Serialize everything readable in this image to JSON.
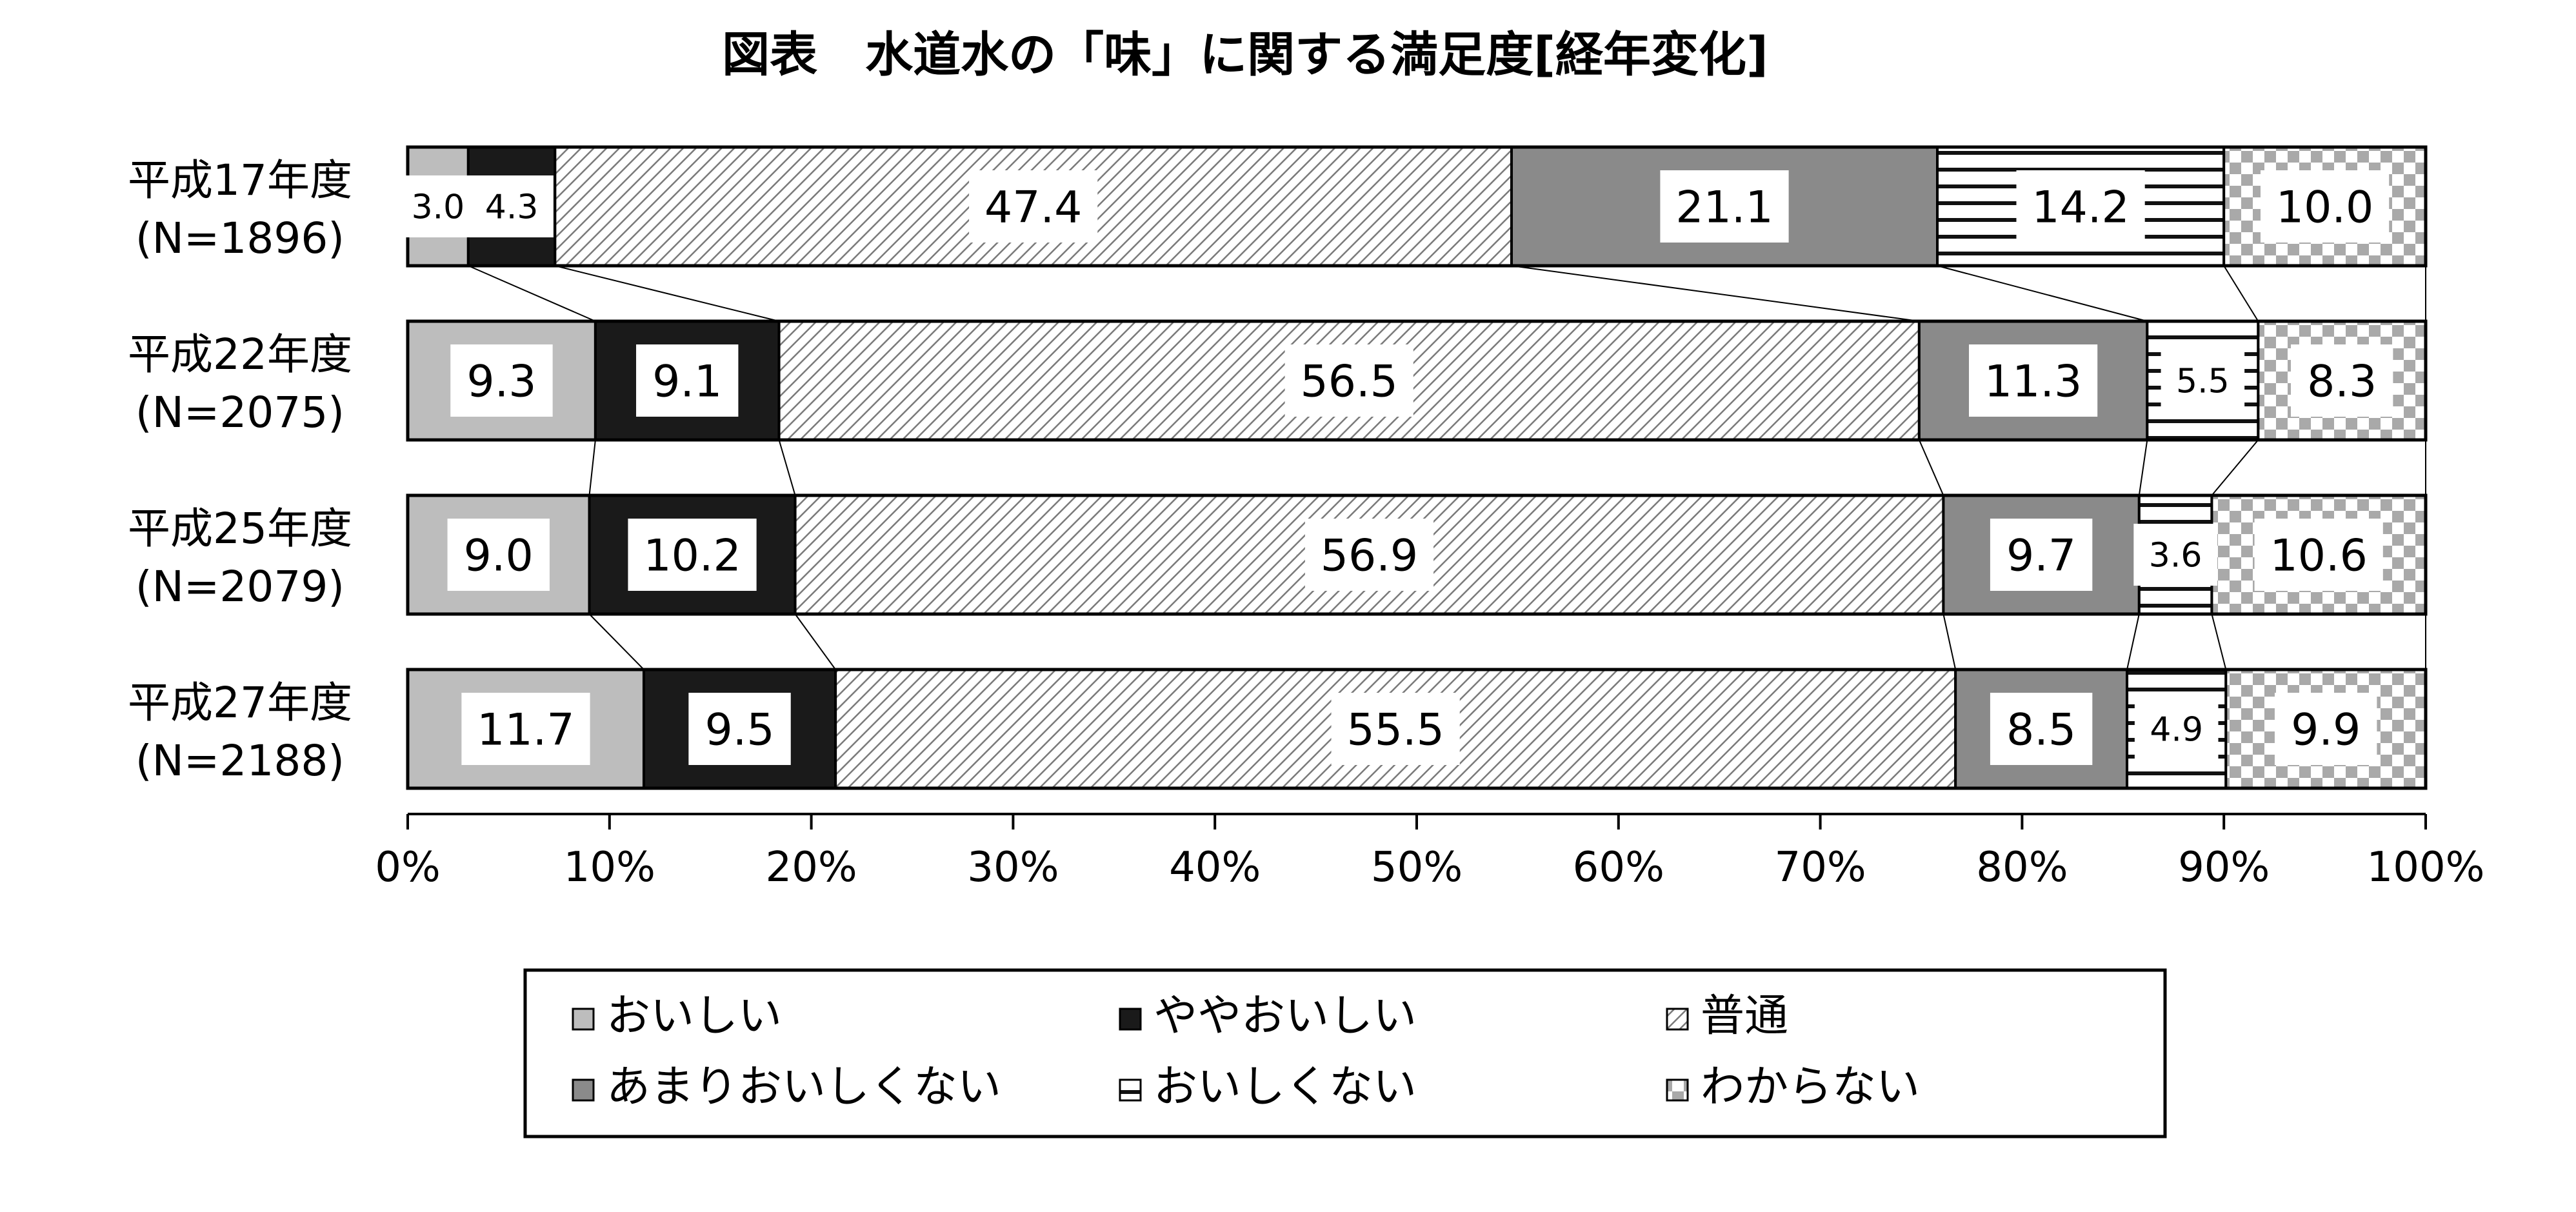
{
  "chart_data": {
    "type": "bar",
    "orientation": "horizontal",
    "stacked": "percent",
    "title": "図表　水道水の「味」に関する満足度[経年変化]",
    "categories": [
      {
        "line1": "平成17年度",
        "line2": "(N=1896)"
      },
      {
        "line1": "平成22年度",
        "line2": "(N=2075)"
      },
      {
        "line1": "平成25年度",
        "line2": "(N=2079)"
      },
      {
        "line1": "平成27年度",
        "line2": "(N=2188)"
      }
    ],
    "series": [
      {
        "name": "おいしい",
        "values": [
          3.0,
          9.3,
          9.0,
          11.7
        ],
        "labels": [
          "3.0",
          "9.3",
          "9.0",
          "11.7"
        ]
      },
      {
        "name": "ややおいしい",
        "values": [
          4.3,
          9.1,
          10.2,
          9.5
        ],
        "labels": [
          "4.3",
          "9.1",
          "10.2",
          "9.5"
        ]
      },
      {
        "name": "普通",
        "values": [
          47.4,
          56.5,
          56.9,
          55.5
        ],
        "labels": [
          "47.4",
          "56.5",
          "56.9",
          "55.5"
        ]
      },
      {
        "name": "あまりおいしくない",
        "values": [
          21.1,
          11.3,
          9.7,
          8.5
        ],
        "labels": [
          "21.1",
          "11.3",
          "9.7",
          "8.5"
        ]
      },
      {
        "name": "おいしくない",
        "values": [
          14.2,
          5.5,
          3.6,
          4.9
        ],
        "labels": [
          "14.2",
          "5.5",
          "3.6",
          "4.9"
        ]
      },
      {
        "name": "わからない",
        "values": [
          10.0,
          8.3,
          10.6,
          9.9
        ],
        "labels": [
          "10.0",
          "8.3",
          "10.6",
          "9.9"
        ]
      }
    ],
    "xlim": [
      0,
      100
    ],
    "xticks": [
      "0%",
      "10%",
      "20%",
      "30%",
      "40%",
      "50%",
      "60%",
      "70%",
      "80%",
      "90%",
      "100%"
    ],
    "series_lines": true,
    "grid": false,
    "legend": {
      "position": "bottom",
      "order": [
        0,
        1,
        2,
        3,
        4,
        5
      ]
    },
    "colors": {
      "light_gray": "#bdbdbd",
      "black": "#1a1a1a",
      "mid_gray": "#8a8a8a",
      "check": "#a9a9a9"
    }
  }
}
